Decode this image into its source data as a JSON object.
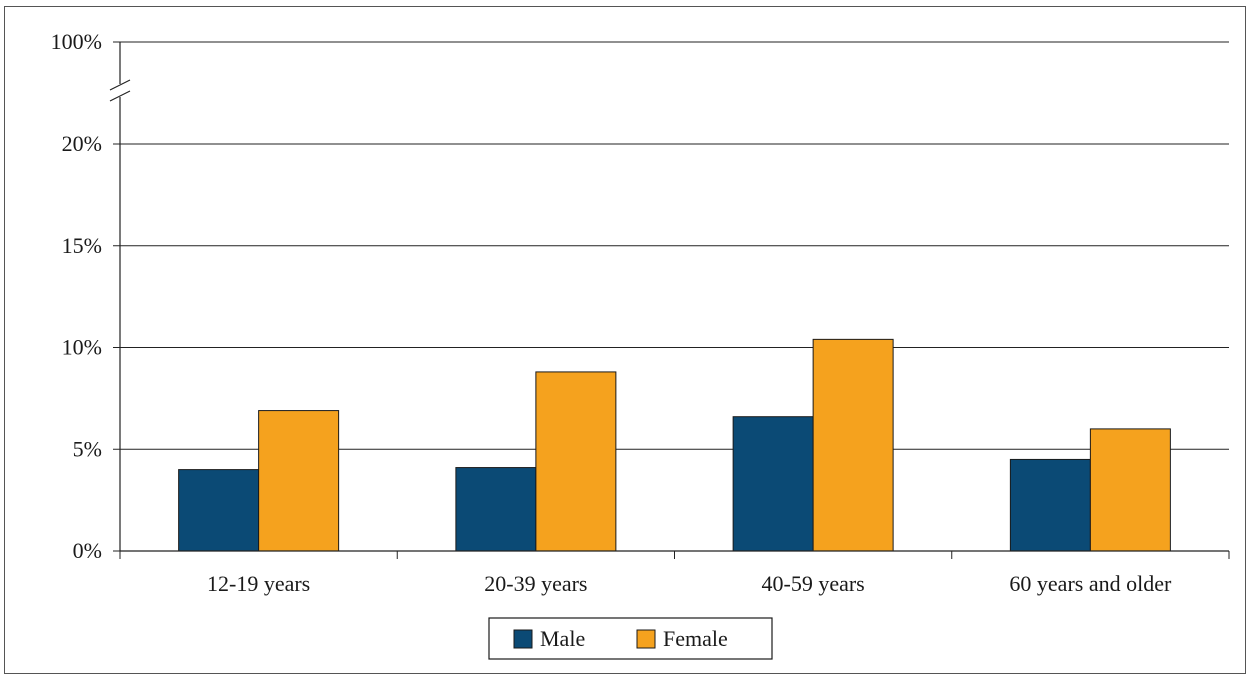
{
  "chart_data": {
    "type": "bar",
    "categories": [
      "12-19 years",
      "20-39 years",
      "40-59 years",
      "60 years and older"
    ],
    "series": [
      {
        "name": "Male",
        "values": [
          4.0,
          4.1,
          6.6,
          4.5
        ],
        "color": "#0b4a75"
      },
      {
        "name": "Female",
        "values": [
          6.9,
          8.8,
          10.4,
          6.0
        ],
        "color": "#f5a21e"
      }
    ],
    "ylim": [
      0,
      20
    ],
    "yticks": [
      "0%",
      "5%",
      "10%",
      "15%",
      "20%"
    ],
    "axis_break_top_label": "100%",
    "grid": true,
    "legend_position": "bottom-center",
    "title": "",
    "xlabel": "",
    "ylabel": ""
  }
}
